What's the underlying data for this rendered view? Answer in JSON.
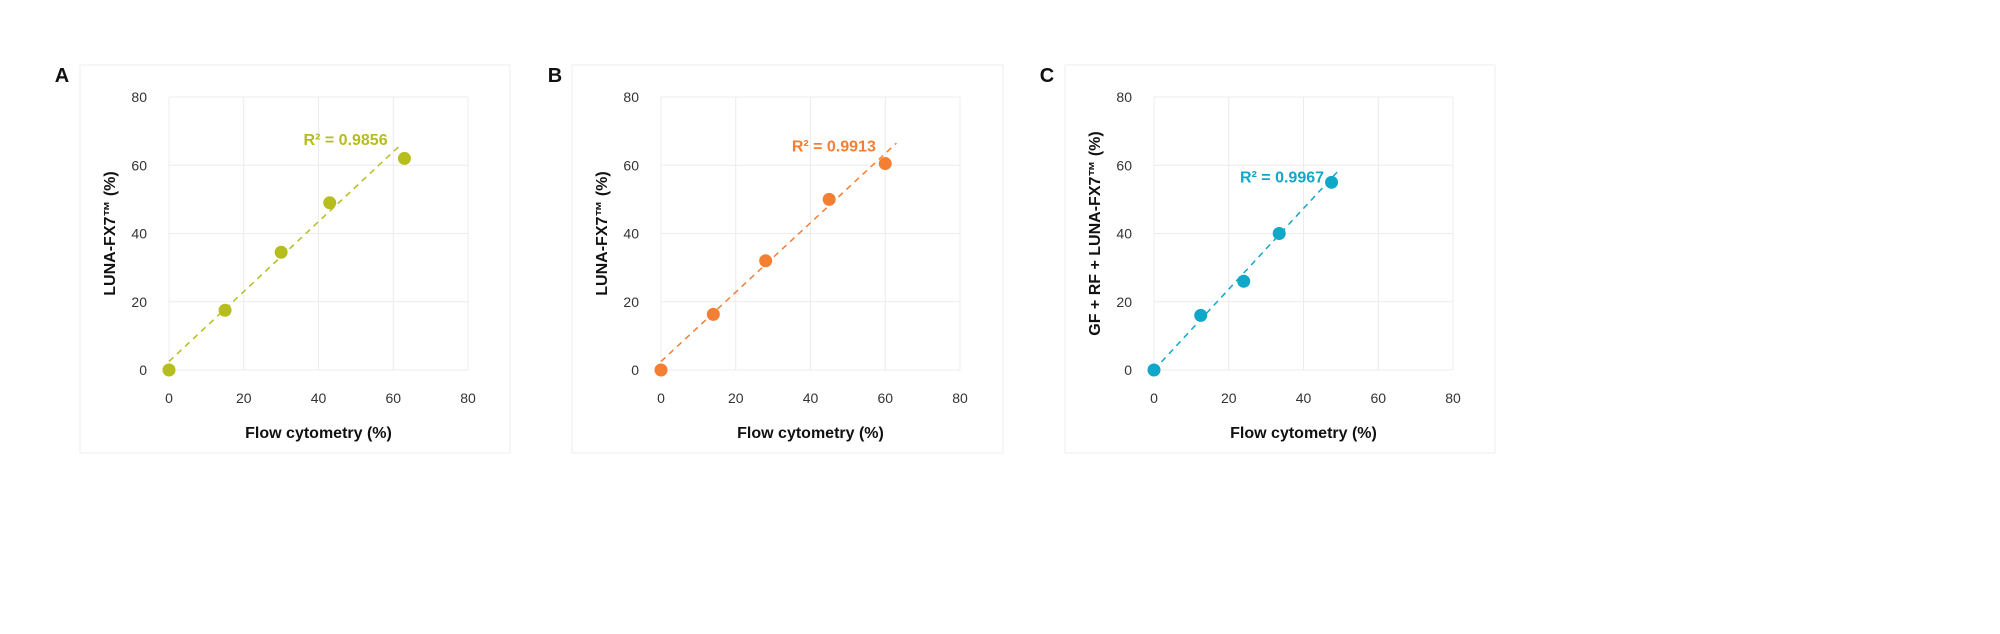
{
  "chart_data": [
    {
      "type": "scatter",
      "panel": "A",
      "xlabel": "Flow cytometry (%)",
      "ylabel": "LUNA-FX7™ (%)",
      "xlim": [
        0,
        80
      ],
      "ylim": [
        0,
        80
      ],
      "xticks": [
        "0",
        "20",
        "40",
        "60",
        "80"
      ],
      "yticks": [
        "0",
        "20",
        "40",
        "60",
        "80"
      ],
      "grid": true,
      "color": "#b5bd1f",
      "x": [
        0,
        15,
        30,
        43,
        63
      ],
      "y": [
        0,
        17.5,
        34.5,
        49,
        62
      ],
      "trendline": {
        "x": [
          0,
          62
        ],
        "y": [
          2.5,
          66
        ]
      },
      "annotation": "R² = 0.9856",
      "annotation_pos": {
        "x": 36,
        "y": 66
      }
    },
    {
      "type": "scatter",
      "panel": "B",
      "xlabel": "Flow cytometry (%)",
      "ylabel": "LUNA-FX7™ (%)",
      "xlim": [
        0,
        80
      ],
      "ylim": [
        0,
        80
      ],
      "xticks": [
        "0",
        "20",
        "40",
        "60",
        "80"
      ],
      "yticks": [
        "0",
        "20",
        "40",
        "60",
        "80"
      ],
      "grid": true,
      "color": "#f47f32",
      "x": [
        0,
        14,
        28,
        45,
        60
      ],
      "y": [
        0,
        16.3,
        32,
        50,
        60.5
      ],
      "trendline": {
        "x": [
          0,
          63
        ],
        "y": [
          2.5,
          66.5
        ]
      },
      "annotation": "R² = 0.9913",
      "annotation_pos": {
        "x": 35,
        "y": 64
      }
    },
    {
      "type": "scatter",
      "panel": "C",
      "xlabel": "Flow cytometry (%)",
      "ylabel": "GF + RF + LUNA-FX7™ (%)",
      "xlim": [
        0,
        80
      ],
      "ylim": [
        0,
        80
      ],
      "xticks": [
        "0",
        "20",
        "40",
        "60",
        "80"
      ],
      "yticks": [
        "0",
        "20",
        "40",
        "60",
        "80"
      ],
      "grid": true,
      "color": "#11a7c9",
      "x": [
        0,
        12.5,
        24,
        33.5,
        47.5
      ],
      "y": [
        0,
        16,
        26,
        40,
        55
      ],
      "xerr": [
        0,
        0,
        0,
        1,
        1.5
      ],
      "yerr": [
        0,
        0,
        0,
        1.5,
        1.5
      ],
      "trendline": {
        "x": [
          0,
          49
        ],
        "y": [
          0,
          58
        ]
      },
      "annotation": "R² = 0.9967",
      "annotation_pos": {
        "x": 23,
        "y": 55
      }
    }
  ]
}
